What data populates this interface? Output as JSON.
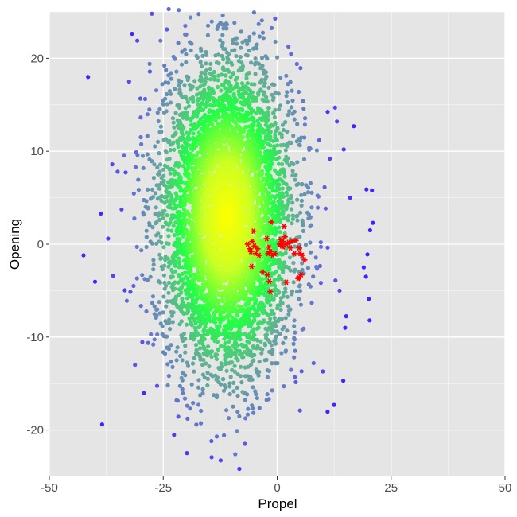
{
  "chart_data": {
    "type": "scatter",
    "title": "",
    "xlabel": "Propel",
    "ylabel": "Opening",
    "xlim": [
      -50,
      50
    ],
    "ylim": [
      -25,
      25
    ],
    "x_ticks": [
      -50,
      -25,
      0,
      25,
      50
    ],
    "y_ticks": [
      -20,
      -10,
      0,
      10,
      20
    ],
    "x_tick_labels": [
      "-50",
      "-25",
      "0",
      "25",
      "50"
    ],
    "y_tick_labels": [
      "-20",
      "-10",
      "0",
      "10",
      "20"
    ],
    "grid": true,
    "legend": "none",
    "background_color": "#e5e5e5",
    "grid_color": "#ffffff",
    "density_colors": [
      "#ffff00",
      "#ccff22",
      "#22ff44",
      "#66a99a",
      "#6677cc",
      "#4422ff"
    ],
    "point_cloud": {
      "description": "approximately bivariate-normal cloud, coloured by density (yellow = dense centre, green, teal, blue/purple = sparse outliers)",
      "center": [
        -11,
        3
      ],
      "sd": [
        7,
        8
      ],
      "count": 6000
    },
    "series": [
      {
        "marker": "asterisk",
        "color": "#ff0000",
        "values": [
          [
            -6.5,
            0.0
          ],
          [
            -6.0,
            -0.5
          ],
          [
            -5.5,
            0.3
          ],
          [
            -5.8,
            -0.8
          ],
          [
            -5.2,
            1.4
          ],
          [
            -5.0,
            -0.2
          ],
          [
            -4.7,
            -1.0
          ],
          [
            -4.3,
            -0.5
          ],
          [
            -4.0,
            -1.2
          ],
          [
            -5.6,
            -2.4
          ],
          [
            -3.2,
            -3.0
          ],
          [
            -2.3,
            0.6
          ],
          [
            -2.0,
            -1.0
          ],
          [
            -1.8,
            -0.3
          ],
          [
            -1.5,
            -0.8
          ],
          [
            -1.3,
            2.4
          ],
          [
            -1.0,
            -1.2
          ],
          [
            -0.5,
            -1.0
          ],
          [
            -2.1,
            -3.3
          ],
          [
            -1.7,
            -4.0
          ],
          [
            -1.5,
            -5.1
          ],
          [
            0.5,
            0.0
          ],
          [
            0.8,
            0.5
          ],
          [
            1.0,
            -0.2
          ],
          [
            1.2,
            0.3
          ],
          [
            1.5,
            1.9
          ],
          [
            1.7,
            0.8
          ],
          [
            2.0,
            0.0
          ],
          [
            1.3,
            -0.3
          ],
          [
            2.5,
            0.2
          ],
          [
            2.9,
            -0.4
          ],
          [
            3.2,
            0.3
          ],
          [
            3.8,
            -1.0
          ],
          [
            4.1,
            0.4
          ],
          [
            4.8,
            -0.4
          ],
          [
            5.0,
            -1.0
          ],
          [
            5.5,
            -1.2
          ],
          [
            6.0,
            -1.7
          ],
          [
            5.3,
            -3.3
          ],
          [
            4.7,
            -3.6
          ],
          [
            2.0,
            -4.1
          ],
          [
            4.6,
            -3.7
          ]
        ]
      }
    ],
    "outlier_points": [
      [
        -41.5,
        18.0
      ],
      [
        -42.5,
        -1.2
      ],
      [
        -38.7,
        3.3
      ],
      [
        -37.1,
        0.6
      ],
      [
        -36.2,
        8.6
      ],
      [
        -36.0,
        -3.4
      ],
      [
        -35.0,
        7.8
      ],
      [
        -33.6,
        9.6
      ],
      [
        -33.0,
        -6.1
      ],
      [
        -32.5,
        17.5
      ],
      [
        -31.2,
        -13.0
      ],
      [
        -30.7,
        21.9
      ],
      [
        -29.5,
        9.5
      ],
      [
        -28.0,
        19.4
      ],
      [
        -27.5,
        24.8
      ],
      [
        -25.6,
        21.9
      ],
      [
        -23.8,
        25.3
      ],
      [
        -21.6,
        25.2
      ],
      [
        -19.0,
        24.4
      ],
      [
        -24.0,
        -15.2
      ],
      [
        -21.0,
        -14.4
      ],
      [
        -15.3,
        -15.2
      ],
      [
        -8.8,
        -20.1
      ],
      [
        -9.2,
        -22.6
      ],
      [
        -7.6,
        -15.9
      ],
      [
        -0.4,
        21.8
      ],
      [
        0.0,
        20.1
      ],
      [
        12.7,
        14.7
      ],
      [
        13.1,
        13.2
      ],
      [
        16.8,
        12.7
      ],
      [
        14.6,
        10.2
      ],
      [
        16.0,
        5.0
      ],
      [
        19.6,
        5.9
      ],
      [
        20.8,
        5.8
      ],
      [
        21.0,
        2.3
      ],
      [
        20.4,
        1.5
      ],
      [
        19.8,
        -1.1
      ],
      [
        19.5,
        -3.5
      ],
      [
        20.1,
        -5.9
      ],
      [
        19.0,
        -2.5
      ],
      [
        20.3,
        -8.2
      ],
      [
        14.9,
        -9.0
      ],
      [
        14.5,
        -14.7
      ],
      [
        12.5,
        -17.3
      ],
      [
        5.0,
        -17.9
      ],
      [
        10.0,
        -13.7
      ],
      [
        8.0,
        -12.8
      ],
      [
        12.8,
        -3.9
      ],
      [
        13.7,
        -5.0
      ],
      [
        8.7,
        10.1
      ]
    ]
  }
}
